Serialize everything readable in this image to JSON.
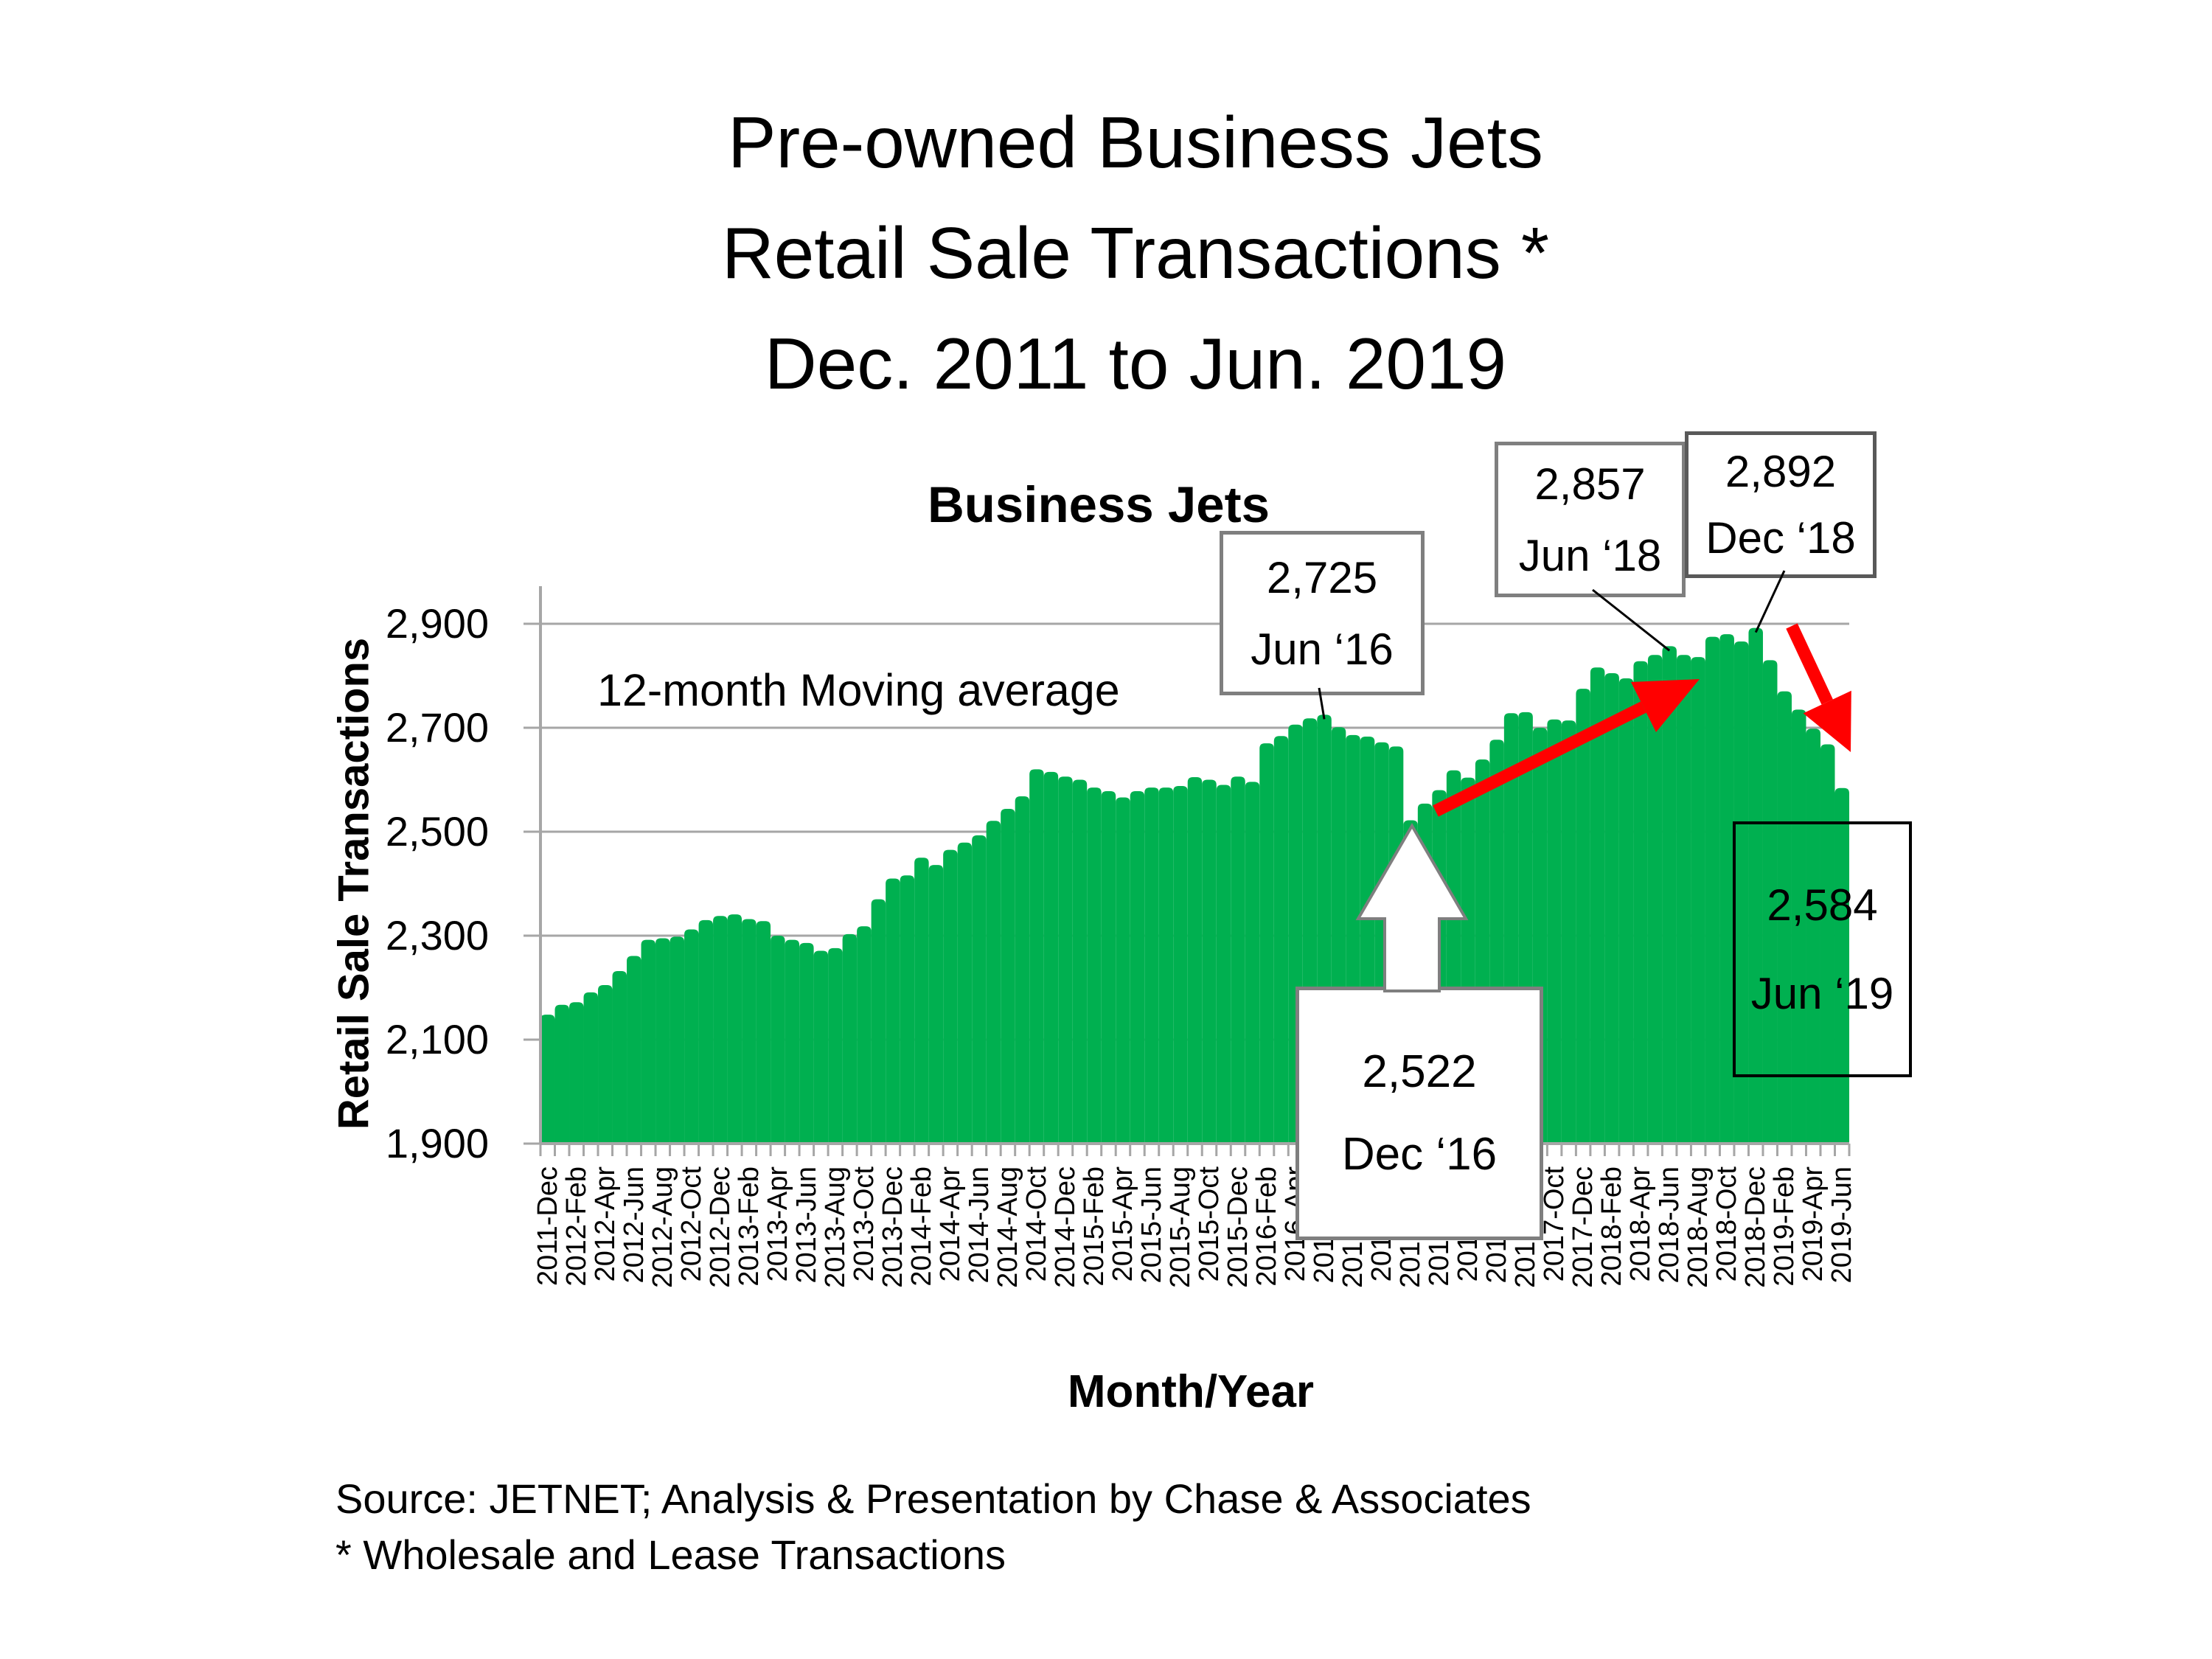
{
  "page_title_lines": [
    "Pre-owned Business Jets",
    "Retail Sale Transactions *",
    "Dec. 2011 to Jun. 2019"
  ],
  "source_lines": [
    "Source: JETNET; Analysis & Presentation by Chase & Associates",
    "* Wholesale and Lease Transactions"
  ],
  "colors": {
    "area": "#00B050",
    "grid": "#A6A6A6",
    "axis": "#A6A6A6",
    "red_arrow": "#FF0000",
    "box_border_grey": "#7f7f7f",
    "box_border_black": "#000000",
    "leader": "#000000"
  },
  "chart_data": {
    "type": "area",
    "title": "Business Jets",
    "xlabel": "Month/Year",
    "ylabel": "Retail Sale Transactions",
    "ylim": [
      1900,
      2900
    ],
    "y_ticks": [
      1900,
      2100,
      2300,
      2500,
      2700,
      2900
    ],
    "y_tick_labels": [
      "1,900",
      "2,100",
      "2,300",
      "2,500",
      "2,700",
      "2,900"
    ],
    "grid": true,
    "legend": false,
    "x_tick_interval": 2,
    "x": [
      "2011-Dec",
      "2012-Jan",
      "2012-Feb",
      "2012-Mar",
      "2012-Apr",
      "2012-May",
      "2012-Jun",
      "2012-Jul",
      "2012-Aug",
      "2012-Sep",
      "2012-Oct",
      "2012-Nov",
      "2012-Dec",
      "2013-Jan",
      "2013-Feb",
      "2013-Mar",
      "2013-Apr",
      "2013-May",
      "2013-Jun",
      "2013-Jul",
      "2013-Aug",
      "2013-Sep",
      "2013-Oct",
      "2013-Nov",
      "2013-Dec",
      "2014-Jan",
      "2014-Feb",
      "2014-Mar",
      "2014-Apr",
      "2014-May",
      "2014-Jun",
      "2014-Jul",
      "2014-Aug",
      "2014-Sep",
      "2014-Oct",
      "2014-Nov",
      "2014-Dec",
      "2015-Jan",
      "2015-Feb",
      "2015-Mar",
      "2015-Apr",
      "2015-May",
      "2015-Jun",
      "2015-Jul",
      "2015-Aug",
      "2015-Sep",
      "2015-Oct",
      "2015-Nov",
      "2015-Dec",
      "2016-Jan",
      "2016-Feb",
      "2016-Mar",
      "2016-Apr",
      "2016-May",
      "2016-Jun",
      "2016-Jul",
      "2016-Aug",
      "2016-Sep",
      "2016-Oct",
      "2016-Nov",
      "2016-Dec",
      "2017-Jan",
      "2017-Feb",
      "2017-Mar",
      "2017-Apr",
      "2017-May",
      "2017-Jun",
      "2017-Jul",
      "2017-Aug",
      "2017-Sep",
      "2017-Oct",
      "2017-Nov",
      "2017-Dec",
      "2018-Jan",
      "2018-Feb",
      "2018-Mar",
      "2018-Apr",
      "2018-May",
      "2018-Jun",
      "2018-Jul",
      "2018-Aug",
      "2018-Sep",
      "2018-Oct",
      "2018-Nov",
      "2018-Dec",
      "2019-Jan",
      "2019-Feb",
      "2019-Mar",
      "2019-Apr",
      "2019-May",
      "2019-Jun"
    ],
    "values": [
      2148,
      2167,
      2172,
      2191,
      2205,
      2232,
      2261,
      2292,
      2295,
      2298,
      2312,
      2330,
      2338,
      2341,
      2332,
      2328,
      2300,
      2292,
      2286,
      2271,
      2276,
      2303,
      2318,
      2370,
      2410,
      2416,
      2450,
      2436,
      2465,
      2479,
      2493,
      2521,
      2544,
      2568,
      2620,
      2615,
      2606,
      2600,
      2585,
      2578,
      2566,
      2578,
      2585,
      2585,
      2588,
      2605,
      2600,
      2590,
      2606,
      2596,
      2670,
      2684,
      2706,
      2718,
      2725,
      2701,
      2686,
      2683,
      2672,
      2664,
      2522,
      2554,
      2580,
      2618,
      2604,
      2639,
      2677,
      2728,
      2730,
      2700,
      2716,
      2714,
      2775,
      2816,
      2805,
      2795,
      2828,
      2840,
      2857,
      2840,
      2836,
      2875,
      2880,
      2866,
      2892,
      2830,
      2770,
      2735,
      2698,
      2668,
      2584
    ],
    "annotations": {
      "moving_average_label": "12-month Moving average",
      "callouts": [
        {
          "value": "2,725",
          "date": "Jun ‘16",
          "month": "2016-Jun",
          "month_index": 54
        },
        {
          "value": "2,857",
          "date": "Jun ‘18",
          "month": "2018-Jun",
          "month_index": 78
        },
        {
          "value": "2,892",
          "date": "Dec ‘18",
          "month": "2018-Dec",
          "month_index": 84
        },
        {
          "value": "2,522",
          "date": "Dec ‘16",
          "month": "2016-Dec",
          "month_index": 60
        },
        {
          "value": "2,584",
          "date": "Jun ‘19",
          "month": "2019-Jun",
          "month_index": 90
        }
      ],
      "trend_arrows": [
        "rise-2017-2018",
        "fall-2019"
      ]
    }
  }
}
